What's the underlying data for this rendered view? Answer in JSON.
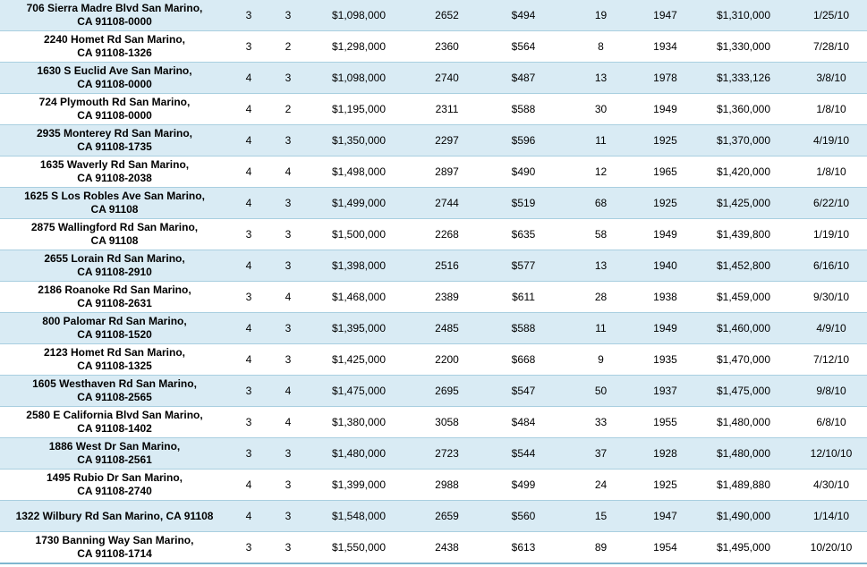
{
  "rows": [
    {
      "address": [
        "706 Sierra Madre Blvd San Marino,",
        "CA 91108-0000"
      ],
      "beds": "3",
      "baths": "3",
      "list_price": "$1,098,000",
      "sqft": "2652",
      "price_sqft": "$494",
      "dom": "19",
      "year": "1947",
      "sold_price": "$1,310,000",
      "date": "1/25/10"
    },
    {
      "address": [
        "2240 Homet Rd San Marino,",
        "CA 91108-1326"
      ],
      "beds": "3",
      "baths": "2",
      "list_price": "$1,298,000",
      "sqft": "2360",
      "price_sqft": "$564",
      "dom": "8",
      "year": "1934",
      "sold_price": "$1,330,000",
      "date": "7/28/10"
    },
    {
      "address": [
        "1630 S Euclid Ave San Marino,",
        "CA 91108-0000"
      ],
      "beds": "4",
      "baths": "3",
      "list_price": "$1,098,000",
      "sqft": "2740",
      "price_sqft": "$487",
      "dom": "13",
      "year": "1978",
      "sold_price": "$1,333,126",
      "date": "3/8/10"
    },
    {
      "address": [
        "724 Plymouth Rd San Marino,",
        "CA 91108-0000"
      ],
      "beds": "4",
      "baths": "2",
      "list_price": "$1,195,000",
      "sqft": "2311",
      "price_sqft": "$588",
      "dom": "30",
      "year": "1949",
      "sold_price": "$1,360,000",
      "date": "1/8/10"
    },
    {
      "address": [
        "2935 Monterey Rd San Marino,",
        "CA 91108-1735"
      ],
      "beds": "4",
      "baths": "3",
      "list_price": "$1,350,000",
      "sqft": "2297",
      "price_sqft": "$596",
      "dom": "11",
      "year": "1925",
      "sold_price": "$1,370,000",
      "date": "4/19/10"
    },
    {
      "address": [
        "1635 Waverly Rd San Marino,",
        "CA 91108-2038"
      ],
      "beds": "4",
      "baths": "4",
      "list_price": "$1,498,000",
      "sqft": "2897",
      "price_sqft": "$490",
      "dom": "12",
      "year": "1965",
      "sold_price": "$1,420,000",
      "date": "1/8/10"
    },
    {
      "address": [
        "1625 S Los Robles Ave San Marino,",
        "CA 91108"
      ],
      "beds": "4",
      "baths": "3",
      "list_price": "$1,499,000",
      "sqft": "2744",
      "price_sqft": "$519",
      "dom": "68",
      "year": "1925",
      "sold_price": "$1,425,000",
      "date": "6/22/10"
    },
    {
      "address": [
        "2875 Wallingford Rd San Marino,",
        "CA 91108"
      ],
      "beds": "3",
      "baths": "3",
      "list_price": "$1,500,000",
      "sqft": "2268",
      "price_sqft": "$635",
      "dom": "58",
      "year": "1949",
      "sold_price": "$1,439,800",
      "date": "1/19/10"
    },
    {
      "address": [
        "2655 Lorain Rd San Marino,",
        "CA 91108-2910"
      ],
      "beds": "4",
      "baths": "3",
      "list_price": "$1,398,000",
      "sqft": "2516",
      "price_sqft": "$577",
      "dom": "13",
      "year": "1940",
      "sold_price": "$1,452,800",
      "date": "6/16/10"
    },
    {
      "address": [
        "2186 Roanoke Rd San Marino,",
        "CA 91108-2631"
      ],
      "beds": "3",
      "baths": "4",
      "list_price": "$1,468,000",
      "sqft": "2389",
      "price_sqft": "$611",
      "dom": "28",
      "year": "1938",
      "sold_price": "$1,459,000",
      "date": "9/30/10"
    },
    {
      "address": [
        "800 Palomar Rd San Marino,",
        "CA 91108-1520"
      ],
      "beds": "4",
      "baths": "3",
      "list_price": "$1,395,000",
      "sqft": "2485",
      "price_sqft": "$588",
      "dom": "11",
      "year": "1949",
      "sold_price": "$1,460,000",
      "date": "4/9/10"
    },
    {
      "address": [
        "2123 Homet Rd San Marino,",
        "CA 91108-1325"
      ],
      "beds": "4",
      "baths": "3",
      "list_price": "$1,425,000",
      "sqft": "2200",
      "price_sqft": "$668",
      "dom": "9",
      "year": "1935",
      "sold_price": "$1,470,000",
      "date": "7/12/10"
    },
    {
      "address": [
        "1605 Westhaven Rd San Marino,",
        "CA 91108-2565"
      ],
      "beds": "3",
      "baths": "4",
      "list_price": "$1,475,000",
      "sqft": "2695",
      "price_sqft": "$547",
      "dom": "50",
      "year": "1937",
      "sold_price": "$1,475,000",
      "date": "9/8/10"
    },
    {
      "address": [
        "2580 E California Blvd San Marino,",
        "CA 91108-1402"
      ],
      "beds": "3",
      "baths": "4",
      "list_price": "$1,380,000",
      "sqft": "3058",
      "price_sqft": "$484",
      "dom": "33",
      "year": "1955",
      "sold_price": "$1,480,000",
      "date": "6/8/10"
    },
    {
      "address": [
        "1886 West Dr San Marino,",
        "CA 91108-2561"
      ],
      "beds": "3",
      "baths": "3",
      "list_price": "$1,480,000",
      "sqft": "2723",
      "price_sqft": "$544",
      "dom": "37",
      "year": "1928",
      "sold_price": "$1,480,000",
      "date": "12/10/10"
    },
    {
      "address": [
        "1495 Rubio Dr San Marino,",
        "CA 91108-2740"
      ],
      "beds": "4",
      "baths": "3",
      "list_price": "$1,399,000",
      "sqft": "2988",
      "price_sqft": "$499",
      "dom": "24",
      "year": "1925",
      "sold_price": "$1,489,880",
      "date": "4/30/10"
    },
    {
      "address": [
        "1322 Wilbury Rd San Marino, CA 91108"
      ],
      "beds": "4",
      "baths": "3",
      "list_price": "$1,548,000",
      "sqft": "2659",
      "price_sqft": "$560",
      "dom": "15",
      "year": "1947",
      "sold_price": "$1,490,000",
      "date": "1/14/10"
    },
    {
      "address": [
        "1730 Banning Way San Marino,",
        "CA 91108-1714"
      ],
      "beds": "3",
      "baths": "3",
      "list_price": "$1,550,000",
      "sqft": "2438",
      "price_sqft": "$613",
      "dom": "89",
      "year": "1954",
      "sold_price": "$1,495,000",
      "date": "10/20/10"
    }
  ]
}
